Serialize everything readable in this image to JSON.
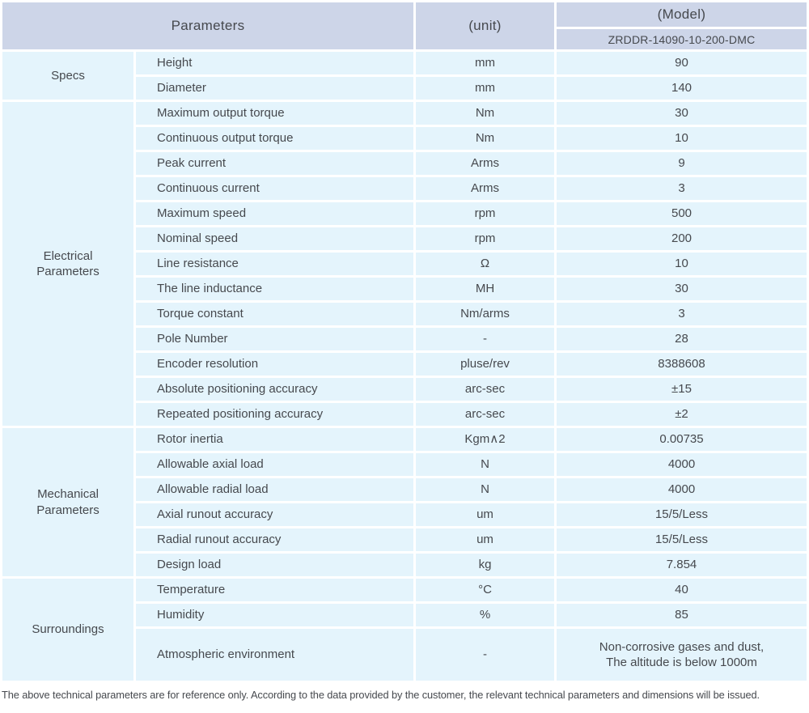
{
  "header": {
    "parameters_label": "Parameters",
    "unit_label": "(unit)",
    "model_label": "(Model)",
    "model_value": "ZRDDR-14090-10-200-DMC"
  },
  "groups": [
    {
      "name": "Specs",
      "rows": [
        {
          "param": "Height",
          "unit": "mm",
          "value": "90"
        },
        {
          "param": "Diameter",
          "unit": "mm",
          "value": "140"
        }
      ]
    },
    {
      "name": "Electrical\nParameters",
      "rows": [
        {
          "param": "Maximum output torque",
          "unit": "Nm",
          "value": "30"
        },
        {
          "param": "Continuous output torque",
          "unit": "Nm",
          "value": "10"
        },
        {
          "param": "Peak current",
          "unit": "Arms",
          "value": "9"
        },
        {
          "param": "Continuous current",
          "unit": "Arms",
          "value": "3"
        },
        {
          "param": "Maximum speed",
          "unit": "rpm",
          "value": "500"
        },
        {
          "param": "Nominal speed",
          "unit": "rpm",
          "value": "200"
        },
        {
          "param": "Line resistance",
          "unit": "Ω",
          "value": "10"
        },
        {
          "param": "The line inductance",
          "unit": "MH",
          "value": "30"
        },
        {
          "param": "Torque constant",
          "unit": "Nm/arms",
          "value": "3"
        },
        {
          "param": "Pole Number",
          "unit": "-",
          "value": "28"
        },
        {
          "param": "Encoder resolution",
          "unit": "pluse/rev",
          "value": "8388608"
        },
        {
          "param": "Absolute positioning accuracy",
          "unit": "arc-sec",
          "value": "±15"
        },
        {
          "param": "Repeated positioning accuracy",
          "unit": "arc-sec",
          "value": "±2"
        }
      ]
    },
    {
      "name": "Mechanical\nParameters",
      "rows": [
        {
          "param": "Rotor inertia",
          "unit": "Kgm∧2",
          "value": "0.00735"
        },
        {
          "param": "Allowable axial load",
          "unit": "N",
          "value": "4000"
        },
        {
          "param": "Allowable radial load",
          "unit": "N",
          "value": "4000"
        },
        {
          "param": "Axial runout accuracy",
          "unit": "um",
          "value": "15/5/Less"
        },
        {
          "param": "Radial runout accuracy",
          "unit": "um",
          "value": "15/5/Less"
        },
        {
          "param": "Design load",
          "unit": "kg",
          "value": "7.854"
        }
      ]
    },
    {
      "name": "Surroundings",
      "rows": [
        {
          "param": "Temperature",
          "unit": "°C",
          "value": "40"
        },
        {
          "param": "Humidity",
          "unit": "%",
          "value": "85"
        },
        {
          "param": "Atmospheric environment",
          "unit": "-",
          "value": "Non-corrosive gases and dust,\nThe altitude is below 1000m",
          "tall": true
        }
      ]
    }
  ],
  "footer_note": "The above technical parameters are for reference only. According to the data provided by the customer, the relevant technical parameters and dimensions will be issued.",
  "colors": {
    "header_bg": "#cdd5e8",
    "cell_bg": "#e4f4fc",
    "text": "#46494e",
    "page_bg": "#ffffff"
  }
}
